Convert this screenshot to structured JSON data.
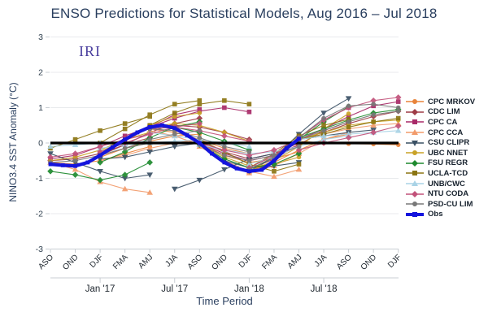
{
  "title": "ENSO Predictions for Statistical Models, Aug 2016 – Jul 2018",
  "watermark": "IRI",
  "colors": {
    "title_text": "#2a3f5f",
    "watermark_text": "#4a3f9e",
    "grid": "#e8eaed",
    "axis_line": "#c9ced3",
    "tick_text": "#30404f",
    "zero_line": "#000000"
  },
  "axes": {
    "y_title": "NINO3.4 SST Anomaly (°C)",
    "x_title": "Time Period",
    "y_ticks": [
      3,
      2,
      1,
      0,
      -1,
      -2,
      -3
    ],
    "season_ticks": [
      "ASO",
      "OND",
      "DJF",
      "FMA",
      "AMJ",
      "JJA",
      "ASO",
      "OND",
      "DJF",
      "FMA",
      "AMJ",
      "JJA",
      "ASO",
      "OND",
      "DJF"
    ],
    "year_ticks": [
      {
        "label": "Jan '17",
        "index": 2
      },
      {
        "label": "Jul '17",
        "index": 5
      },
      {
        "label": "Jan '18",
        "index": 8
      },
      {
        "label": "Jul '18",
        "index": 11
      }
    ]
  },
  "chart_data": {
    "type": "line",
    "title": "ENSO Predictions for Statistical Models, Aug 2016 – Jul 2018",
    "xlabel": "Time Period",
    "ylabel": "NINO3.4 SST Anomaly (°C)",
    "ylim": [
      -3,
      3
    ],
    "grid": "horizontal-only",
    "legend_position": "right",
    "x_categories": [
      "ASO 2016",
      "OND 2016",
      "DJF 2017",
      "FMA 2017",
      "AMJ 2017",
      "JJA 2017",
      "ASO 2017",
      "OND 2017",
      "DJF 2018",
      "FMA 2018",
      "AMJ 2018",
      "JJA 2018",
      "ASO 2018",
      "OND 2018",
      "DJF 2019"
    ],
    "note": "Each model shows several forecast trajectories launched from successive start seasons; x unit = one season index (2 months).",
    "series": [
      {
        "name": "CPC MRKOV",
        "color": "#e8833a",
        "marker": "circle",
        "forecasts": [
          {
            "start": 0,
            "values": [
              -0.55,
              -0.6,
              -0.5,
              -0.3,
              -0.1
            ]
          },
          {
            "start": 2,
            "values": [
              -0.4,
              -0.15,
              0.05,
              0.2,
              0.25
            ]
          },
          {
            "start": 4,
            "values": [
              0.4,
              0.3,
              0.1,
              -0.15,
              -0.3
            ]
          },
          {
            "start": 6,
            "values": [
              0.0,
              -0.35,
              -0.55,
              -0.45,
              -0.25
            ]
          },
          {
            "start": 8,
            "values": [
              -0.8,
              -0.55,
              -0.2,
              0.1,
              0.25
            ]
          },
          {
            "start": 10,
            "values": [
              0.05,
              0.0,
              -0.02,
              -0.03,
              -0.05
            ]
          }
        ]
      },
      {
        "name": "CDC LIM",
        "color": "#9e3b46",
        "marker": "diamond",
        "forecasts": [
          {
            "start": 0,
            "values": [
              -0.5,
              -0.45,
              -0.3,
              -0.05,
              0.15
            ]
          },
          {
            "start": 2,
            "values": [
              -0.35,
              -0.05,
              0.3,
              0.55,
              0.7
            ]
          },
          {
            "start": 4,
            "values": [
              0.45,
              0.5,
              0.45,
              0.3,
              0.1
            ]
          },
          {
            "start": 6,
            "values": [
              0.05,
              -0.25,
              -0.45,
              -0.3,
              0.0
            ]
          },
          {
            "start": 8,
            "values": [
              -0.75,
              -0.45,
              -0.05,
              0.35,
              0.6
            ]
          },
          {
            "start": 10,
            "values": [
              0.1,
              0.3,
              0.55,
              0.75,
              0.9
            ]
          }
        ]
      },
      {
        "name": "CPC CA",
        "color": "#a82a68",
        "marker": "square",
        "forecasts": [
          {
            "start": 0,
            "values": [
              -0.45,
              -0.35,
              -0.1,
              0.2,
              0.45
            ]
          },
          {
            "start": 2,
            "values": [
              -0.3,
              0.05,
              0.45,
              0.8,
              0.95
            ]
          },
          {
            "start": 4,
            "values": [
              0.45,
              0.7,
              0.9,
              1.0,
              0.88
            ]
          },
          {
            "start": 6,
            "values": [
              0.0,
              -0.3,
              -0.5,
              -0.35,
              -0.05
            ]
          },
          {
            "start": 8,
            "values": [
              -0.7,
              -0.35,
              0.15,
              0.65,
              1.0
            ]
          },
          {
            "start": 10,
            "values": [
              0.1,
              0.4,
              0.75,
              1.05,
              1.17
            ]
          }
        ]
      },
      {
        "name": "CPC CCA",
        "color": "#f29b6b",
        "marker": "triangle-up",
        "forecasts": [
          {
            "start": 0,
            "values": [
              -0.55,
              -0.75,
              -1.1,
              -1.3,
              -1.4
            ]
          },
          {
            "start": 2,
            "values": [
              -0.5,
              -0.35,
              -0.15,
              0.0,
              0.1
            ]
          },
          {
            "start": 4,
            "values": [
              0.35,
              0.2,
              -0.05,
              -0.35,
              -0.55
            ]
          },
          {
            "start": 6,
            "values": [
              -0.1,
              -0.5,
              -0.8,
              -0.95,
              -0.75
            ]
          },
          {
            "start": 8,
            "values": [
              -0.85,
              -0.65,
              -0.3,
              0.1,
              0.3
            ]
          },
          {
            "start": 10,
            "values": [
              0.1,
              0.25,
              0.4,
              0.5,
              0.55
            ]
          }
        ]
      },
      {
        "name": "CSU CLIPR",
        "color": "#3a5064",
        "marker": "triangle-down",
        "forecasts": [
          {
            "start": 0,
            "values": [
              -0.3,
              -0.55,
              -0.8,
              -1.0,
              -0.9
            ]
          },
          {
            "start": 2,
            "values": [
              -0.45,
              -0.4,
              -0.25,
              -0.1,
              0.0
            ]
          },
          {
            "start": 5,
            "values": [
              -1.3,
              -1.05,
              -0.75,
              -0.45,
              -0.3
            ]
          },
          {
            "start": 7,
            "values": [
              -0.5,
              -0.7,
              -0.65,
              -0.55
            ]
          },
          {
            "start": 8,
            "values": [
              -0.8,
              -0.4,
              0.25,
              0.85,
              1.26
            ]
          },
          {
            "start": 10,
            "values": [
              0.1,
              0.2,
              0.3,
              0.37
            ]
          }
        ]
      },
      {
        "name": "UBC NNET",
        "color": "#c9a227",
        "marker": "circle",
        "forecasts": [
          {
            "start": 0,
            "values": [
              -0.5,
              -0.4,
              -0.2,
              0.1,
              0.3
            ]
          },
          {
            "start": 2,
            "values": [
              -0.25,
              0.1,
              0.5,
              0.75,
              0.85
            ]
          },
          {
            "start": 4,
            "values": [
              0.45,
              0.55,
              0.5,
              0.3,
              0.05
            ]
          },
          {
            "start": 6,
            "values": [
              -0.05,
              -0.4,
              -0.65,
              -0.6,
              -0.4
            ]
          },
          {
            "start": 8,
            "values": [
              -0.8,
              -0.5,
              -0.1,
              0.4,
              0.83
            ]
          },
          {
            "start": 10,
            "values": [
              0.1,
              0.3,
              0.5,
              0.6,
              0.65
            ]
          }
        ]
      },
      {
        "name": "FSU REGR",
        "color": "#1e8a2e",
        "marker": "diamond",
        "forecasts": [
          {
            "start": 0,
            "values": [
              -0.8,
              -0.9,
              -1.05,
              -0.9,
              -0.55
            ]
          },
          {
            "start": 2,
            "values": [
              -0.55,
              -0.25,
              0.15,
              0.45,
              0.6
            ]
          },
          {
            "start": 4,
            "values": [
              0.4,
              0.45,
              0.3,
              0.05,
              -0.2
            ]
          },
          {
            "start": 6,
            "values": [
              -0.05,
              -0.45,
              -0.7,
              -0.6,
              -0.3
            ]
          },
          {
            "start": 8,
            "values": [
              -0.75,
              -0.4,
              0.1,
              0.6,
              1.03
            ]
          },
          {
            "start": 10,
            "values": [
              0.15,
              0.4,
              0.65,
              0.85,
              0.95
            ]
          }
        ]
      },
      {
        "name": "UCLA-TCD",
        "color": "#8b7512",
        "marker": "square",
        "forecasts": [
          {
            "start": 0,
            "values": [
              -0.15,
              0.1,
              0.35,
              0.55,
              0.75
            ]
          },
          {
            "start": 2,
            "values": [
              0.0,
              0.4,
              0.8,
              1.1,
              1.2
            ]
          },
          {
            "start": 4,
            "values": [
              0.5,
              0.85,
              1.1,
              1.2,
              1.1
            ]
          },
          {
            "start": 6,
            "values": [
              0.1,
              -0.25,
              -0.6,
              -0.8,
              -0.6
            ]
          },
          {
            "start": 8,
            "values": [
              -0.7,
              -0.3,
              0.2,
              0.5,
              0.67
            ]
          },
          {
            "start": 10,
            "values": [
              0.1,
              0.25,
              0.45,
              0.6,
              0.7
            ]
          }
        ]
      },
      {
        "name": "UNB/CWC",
        "color": "#a9d3e6",
        "marker": "triangle-up",
        "forecasts": [
          {
            "start": 0,
            "values": [
              -0.1,
              -0.05,
              0.0,
              0.02,
              0.05
            ]
          },
          {
            "start": 2,
            "values": [
              -0.15,
              -0.05,
              0.0,
              0.05,
              0.1
            ]
          },
          {
            "start": 4,
            "values": [
              0.3,
              0.2,
              0.1,
              0.0,
              -0.1
            ]
          },
          {
            "start": 6,
            "values": [
              -0.05,
              -0.2,
              -0.3,
              -0.25,
              -0.1
            ]
          },
          {
            "start": 8,
            "values": [
              -0.6,
              -0.4,
              -0.1,
              0.1,
              0.2
            ]
          },
          {
            "start": 10,
            "values": [
              0.1,
              0.2,
              0.25,
              0.3,
              0.35
            ]
          }
        ]
      },
      {
        "name": "NTU CODA",
        "color": "#c2527a",
        "marker": "diamond",
        "forecasts": [
          {
            "start": 0,
            "values": [
              -0.4,
              -0.3,
              -0.1,
              0.1,
              0.25
            ]
          },
          {
            "start": 2,
            "values": [
              -0.25,
              0.0,
              0.25,
              0.45,
              0.55
            ]
          },
          {
            "start": 4,
            "values": [
              0.4,
              0.45,
              0.35,
              0.2,
              0.05
            ]
          },
          {
            "start": 6,
            "values": [
              0.0,
              -0.2,
              -0.35,
              -0.2,
              0.1
            ]
          },
          {
            "start": 8,
            "values": [
              -0.7,
              -0.35,
              0.15,
              0.65,
              1.0,
              1.2,
              1.29
            ]
          },
          {
            "start": 10,
            "values": [
              -0.2,
              0.0,
              0.15,
              0.3,
              0.48
            ]
          }
        ]
      },
      {
        "name": "PSD-CU LIM",
        "color": "#787878",
        "marker": "circle",
        "forecasts": [
          {
            "start": 0,
            "values": [
              -0.55,
              -0.5,
              -0.35,
              -0.15,
              0.0
            ]
          },
          {
            "start": 2,
            "values": [
              -0.35,
              -0.15,
              0.1,
              0.25,
              0.35
            ]
          },
          {
            "start": 4,
            "values": [
              0.4,
              0.35,
              0.15,
              -0.1,
              -0.25
            ]
          },
          {
            "start": 6,
            "values": [
              -0.05,
              -0.35,
              -0.5,
              -0.35,
              -0.1
            ]
          },
          {
            "start": 8,
            "values": [
              -0.75,
              -0.4,
              0.15,
              0.7,
              1.05,
              1.1,
              1.0
            ]
          },
          {
            "start": 10,
            "values": [
              0.1,
              0.35,
              0.6,
              0.8,
              0.9
            ]
          }
        ]
      }
    ],
    "obs": {
      "name": "Obs",
      "color": "#1414dd",
      "marker": "square",
      "x": [
        0,
        0.5,
        1,
        1.5,
        2,
        2.5,
        3,
        3.5,
        4,
        4.5,
        5,
        5.5,
        6,
        6.5,
        7,
        7.5,
        8,
        8.5,
        9,
        9.5,
        10
      ],
      "values": [
        -0.6,
        -0.63,
        -0.65,
        -0.55,
        -0.35,
        -0.12,
        0.1,
        0.3,
        0.45,
        0.5,
        0.42,
        0.22,
        0.0,
        -0.3,
        -0.55,
        -0.72,
        -0.8,
        -0.76,
        -0.5,
        -0.15,
        0.12
      ]
    }
  }
}
